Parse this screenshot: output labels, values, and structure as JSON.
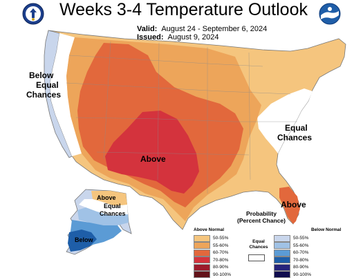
{
  "title": "Weeks 3-4 Temperature Outlook",
  "valid_label": "Valid:",
  "valid_value": "August 24 - September 6, 2024",
  "issued_label": "Issued:",
  "issued_value": "August 9, 2024",
  "map_labels": {
    "below_west": "Below",
    "equal_west_1": "Equal",
    "equal_west_2": "Chances",
    "above_sw": "Above",
    "equal_east_1": "Equal",
    "equal_east_2": "Chances",
    "above_fl": "Above",
    "ak_above": "Above",
    "ak_equal_1": "Equal",
    "ak_equal_2": "Chances",
    "ak_below": "Below"
  },
  "legend": {
    "title_1": "Probability",
    "title_2": "(Percent Chance)",
    "above_header": "Above Normal",
    "below_header": "Below Normal",
    "equal_1": "Equal",
    "equal_2": "Chances",
    "above": [
      {
        "label": "50-55%",
        "color": "#f5c57e"
      },
      {
        "label": "55-60%",
        "color": "#eda55a"
      },
      {
        "label": "60-70%",
        "color": "#e2683c"
      },
      {
        "label": "70-80%",
        "color": "#d4333d"
      },
      {
        "label": "80-90%",
        "color": "#9c1b2c"
      },
      {
        "label": "90-100%",
        "color": "#621219"
      }
    ],
    "below": [
      {
        "label": "50-55%",
        "color": "#c9d6ec"
      },
      {
        "label": "55-60%",
        "color": "#a0c2e6"
      },
      {
        "label": "60-70%",
        "color": "#5b9bd5"
      },
      {
        "label": "70-80%",
        "color": "#1e5ea8"
      },
      {
        "label": "80-90%",
        "color": "#26237b"
      },
      {
        "label": "90-100%",
        "color": "#100c4e"
      }
    ]
  }
}
